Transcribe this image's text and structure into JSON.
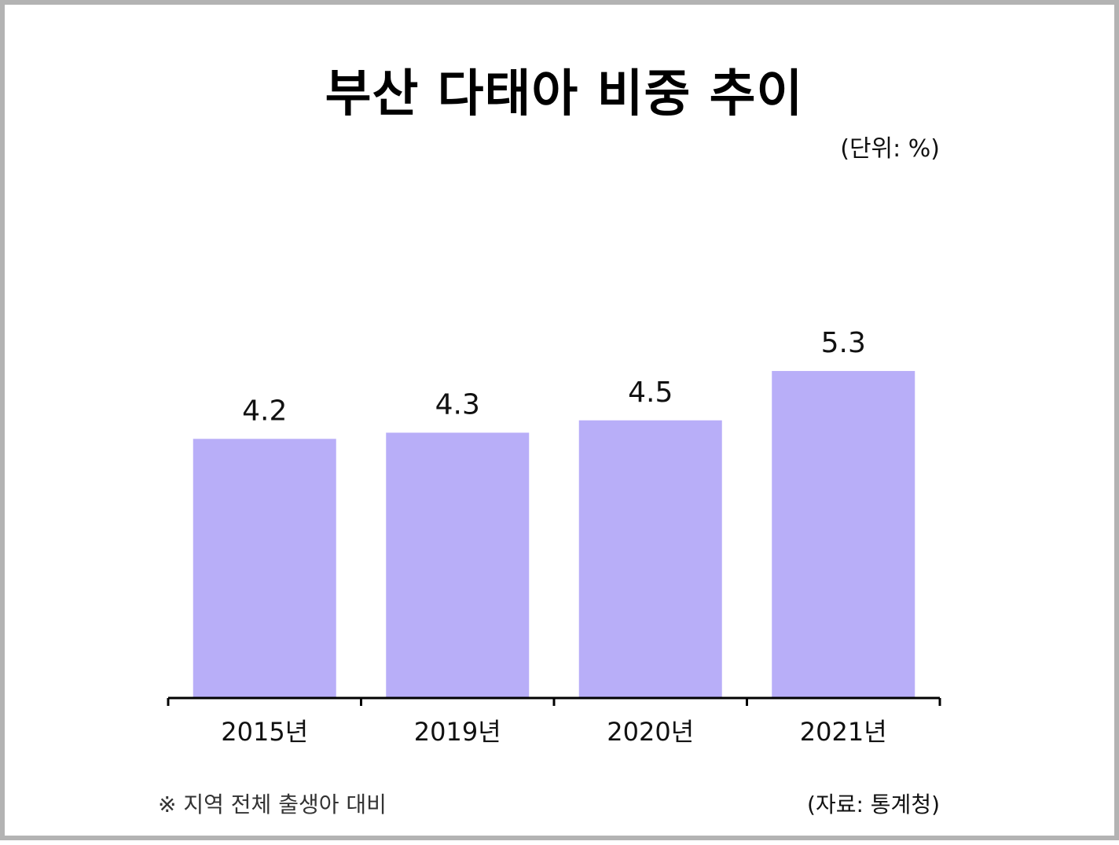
{
  "chart_data": {
    "type": "bar",
    "title": "부산 다태아 비중 추이",
    "unit_label": "(단위: %)",
    "categories": [
      "2015년",
      "2019년",
      "2020년",
      "2021년"
    ],
    "values": [
      4.2,
      4.3,
      4.5,
      5.3
    ],
    "value_labels": [
      "4.2",
      "4.3",
      "4.5",
      "5.3"
    ],
    "bar_color": "#b8aef8",
    "axis_color": "#000000",
    "ylim": [
      0,
      5.5
    ],
    "grid": false,
    "note": "※ 지역 전체 출생아 대비",
    "source": "(자료: 통계청)"
  }
}
